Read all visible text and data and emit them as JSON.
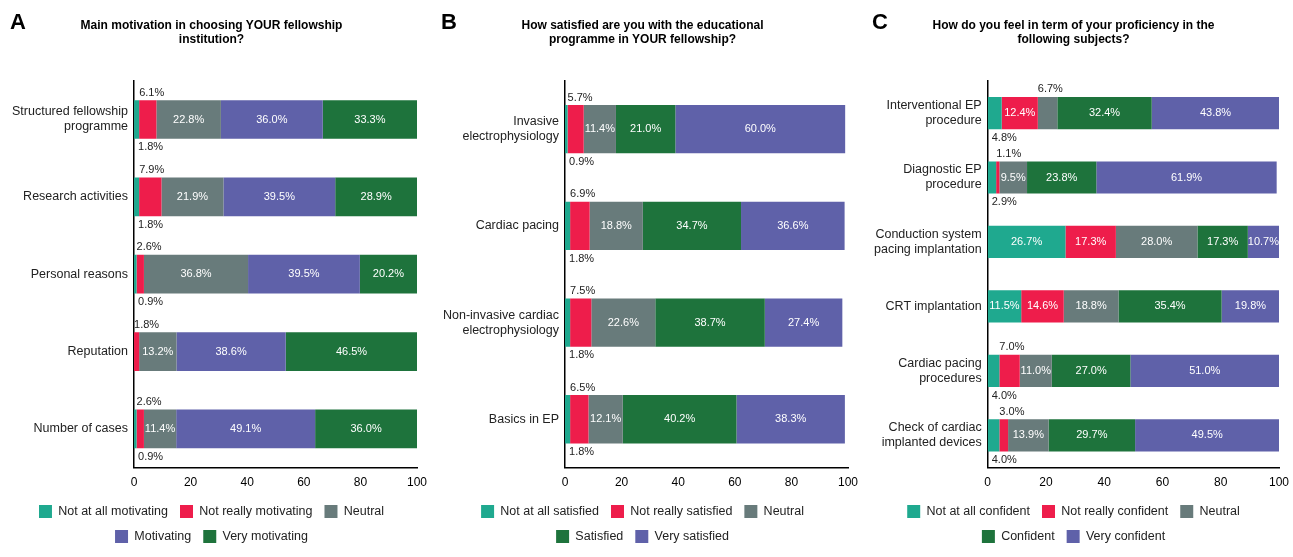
{
  "chart_data": [
    {
      "type": "bar",
      "orientation": "horizontal",
      "stacked": true,
      "title": "Main motivation in choosing YOUR fellowship institution?",
      "annotations": [
        "A"
      ],
      "categories": [
        "Structured fellowship programme",
        "Research activities",
        "Personal reasons",
        "Reputation",
        "Number of cases"
      ],
      "xlim": [
        0,
        100
      ],
      "xticks": [
        0,
        20,
        40,
        60,
        80,
        100
      ],
      "legend": "bottom",
      "grid": false,
      "series": [
        {
          "name": "Not at all motivating",
          "color": "#1fa98f",
          "values": [
            1.8,
            1.8,
            0.9,
            null,
            0.9
          ],
          "value_labels": [
            "1.8%",
            "1.8%",
            "0.9%",
            null,
            "0.9%"
          ]
        },
        {
          "name": "Not really motivating",
          "color": "#ee1d4b",
          "values": [
            6.1,
            7.9,
            2.6,
            1.8,
            2.6
          ],
          "value_labels": [
            "6.1%",
            "7.9%",
            "2.6%",
            "1.8%",
            "2.6%"
          ]
        },
        {
          "name": "Neutral",
          "color": "#687b7b",
          "values": [
            22.8,
            21.9,
            36.8,
            13.2,
            11.4
          ],
          "value_labels": [
            "22.8%",
            "21.9%",
            "36.8%",
            "13.2%",
            "11.4%"
          ]
        },
        {
          "name": "Motivating",
          "color": "#5f61a9",
          "values": [
            36.0,
            39.5,
            39.5,
            38.6,
            49.1
          ],
          "value_labels": [
            "36.0%",
            "39.5%",
            "39.5%",
            "38.6%",
            "49.1%"
          ]
        },
        {
          "name": "Very motivating",
          "color": "#1e733c",
          "values": [
            33.3,
            28.9,
            20.2,
            46.5,
            36.0
          ],
          "value_labels": [
            "33.3%",
            "28.9%",
            "20.2%",
            "46.5%",
            "36.0%"
          ]
        }
      ]
    },
    {
      "type": "bar",
      "orientation": "horizontal",
      "stacked": true,
      "title": "How satisfied are you with the educational programme in YOUR fellowship?",
      "annotations": [
        "B"
      ],
      "categories": [
        "Invasive electrophysiology",
        "Cardiac pacing",
        "Non-invasive cardiac electrophysiology",
        "Basics in EP"
      ],
      "xlim": [
        0,
        100
      ],
      "xticks": [
        0,
        20,
        40,
        60,
        80,
        100
      ],
      "legend": "bottom",
      "grid": false,
      "series": [
        {
          "name": "Not at all satisfied",
          "color": "#1fa98f",
          "values": [
            0.9,
            1.8,
            1.8,
            1.8
          ],
          "value_labels": [
            "0.9%",
            "1.8%",
            "1.8%",
            "1.8%"
          ]
        },
        {
          "name": "Not really satisfied",
          "color": "#ee1d4b",
          "values": [
            5.7,
            6.9,
            7.5,
            6.5
          ],
          "value_labels": [
            "5.7%",
            "6.9%",
            "7.5%",
            "6.5%"
          ]
        },
        {
          "name": "Neutral",
          "color": "#687b7b",
          "values": [
            11.4,
            18.8,
            22.6,
            12.1
          ],
          "value_labels": [
            "11.4%",
            "18.8%",
            "22.6%",
            "12.1%"
          ]
        },
        {
          "name": "Satisfied",
          "color": "#1e733c",
          "values": [
            21.0,
            34.7,
            38.7,
            40.2
          ],
          "value_labels": [
            "21.0%",
            "34.7%",
            "38.7%",
            "40.2%"
          ]
        },
        {
          "name": "Very satisfied",
          "color": "#5f61a9",
          "values": [
            60.0,
            36.6,
            27.4,
            38.3
          ],
          "value_labels": [
            "60.0%",
            "36.6%",
            "27.4%",
            "38.3%"
          ]
        }
      ]
    },
    {
      "type": "bar",
      "orientation": "horizontal",
      "stacked": true,
      "title": "How do you feel in term of your proficiency in the following subjects?",
      "annotations": [
        "C"
      ],
      "categories": [
        "Interventional EP procedure",
        "Diagnostic EP procedure",
        "Conduction system pacing implantation",
        "CRT implantation",
        "Cardiac pacing procedures",
        "Check of cardiac implanted devices"
      ],
      "xlim": [
        0,
        100
      ],
      "xticks": [
        0,
        20,
        40,
        60,
        80,
        100
      ],
      "legend": "bottom",
      "grid": false,
      "series": [
        {
          "name": "Not at all confident",
          "color": "#1fa98f",
          "values": [
            4.8,
            2.9,
            26.7,
            11.5,
            4.0,
            4.0
          ],
          "value_labels": [
            "4.8%",
            "2.9%",
            "26.7%",
            "11.5%",
            "4.0%",
            "4.0%"
          ]
        },
        {
          "name": "Not really confident",
          "color": "#ee1d4b",
          "values": [
            12.4,
            1.1,
            17.3,
            14.6,
            7.0,
            3.0
          ],
          "value_labels": [
            "12.4%",
            "1.1%",
            "17.3%",
            "14.6%",
            "7.0%",
            "3.0%"
          ]
        },
        {
          "name": "Neutral",
          "color": "#687b7b",
          "values": [
            6.7,
            9.5,
            28.0,
            18.8,
            11.0,
            13.9
          ],
          "value_labels": [
            "6.7%",
            "9.5%",
            "28.0%",
            "18.8%",
            "11.0%",
            "13.9%"
          ]
        },
        {
          "name": "Confident",
          "color": "#1e733c",
          "values": [
            32.4,
            23.8,
            17.3,
            35.4,
            27.0,
            29.7
          ],
          "value_labels": [
            "32.4%",
            "23.8%",
            "17.3%",
            "35.4%",
            "27.0%",
            "29.7%"
          ]
        },
        {
          "name": "Very confident",
          "color": "#5f61a9",
          "values": [
            43.8,
            61.9,
            10.7,
            19.8,
            51.0,
            49.5
          ],
          "value_labels": [
            "43.8%",
            "61.9%",
            "10.7%",
            "19.8%",
            "51.0%",
            "49.5%"
          ]
        }
      ]
    }
  ]
}
